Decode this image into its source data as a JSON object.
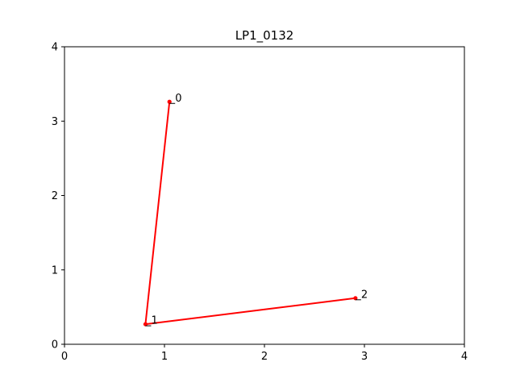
{
  "chart_data": {
    "type": "line",
    "title": "LP1_0132",
    "xlabel": "",
    "ylabel": "",
    "xlim": [
      0,
      4
    ],
    "ylim": [
      0,
      4
    ],
    "xticks": [
      "0",
      "1",
      "2",
      "3",
      "4"
    ],
    "yticks": [
      "0",
      "1",
      "2",
      "3",
      "4"
    ],
    "grid": false,
    "series": [
      {
        "color": "#ff0000",
        "points": [
          {
            "label": "0",
            "x": 1.05,
            "y": 3.26
          },
          {
            "label": "1",
            "x": 0.81,
            "y": 0.27
          },
          {
            "label": "2",
            "x": 2.91,
            "y": 0.62
          }
        ]
      }
    ]
  }
}
